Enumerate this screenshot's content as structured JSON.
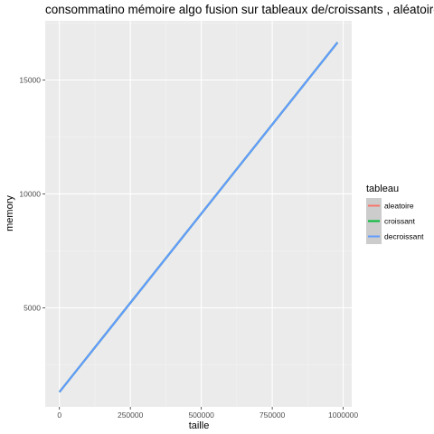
{
  "chart_data": {
    "type": "line",
    "title": "consommatino mémoire algo fusion sur tableaux de/croissants , aléatoire",
    "xlabel": "taille",
    "ylabel": "memory",
    "xlim": [
      -50000,
      1030000
    ],
    "ylim": [
      650,
      17600
    ],
    "x_ticks": [
      0,
      250000,
      500000,
      750000,
      1000000
    ],
    "x_tick_labels": [
      "0",
      "250000",
      "500000",
      "750000",
      "1000000"
    ],
    "y_ticks": [
      5000,
      10000,
      15000
    ],
    "y_tick_labels": [
      "5000",
      "10000",
      "15000"
    ],
    "grid": true,
    "legend": {
      "title": "tableau",
      "position": "right"
    },
    "series": [
      {
        "name": "aleatoire",
        "color": "#F8766D",
        "x": [
          0,
          980000
        ],
        "y": [
          1300,
          16650
        ]
      },
      {
        "name": "croissant",
        "color": "#00BA38",
        "x": [
          0,
          980000
        ],
        "y": [
          1300,
          16650
        ]
      },
      {
        "name": "decroissant",
        "color": "#619CFF",
        "x": [
          0,
          980000
        ],
        "y": [
          1300,
          16650
        ]
      }
    ]
  }
}
